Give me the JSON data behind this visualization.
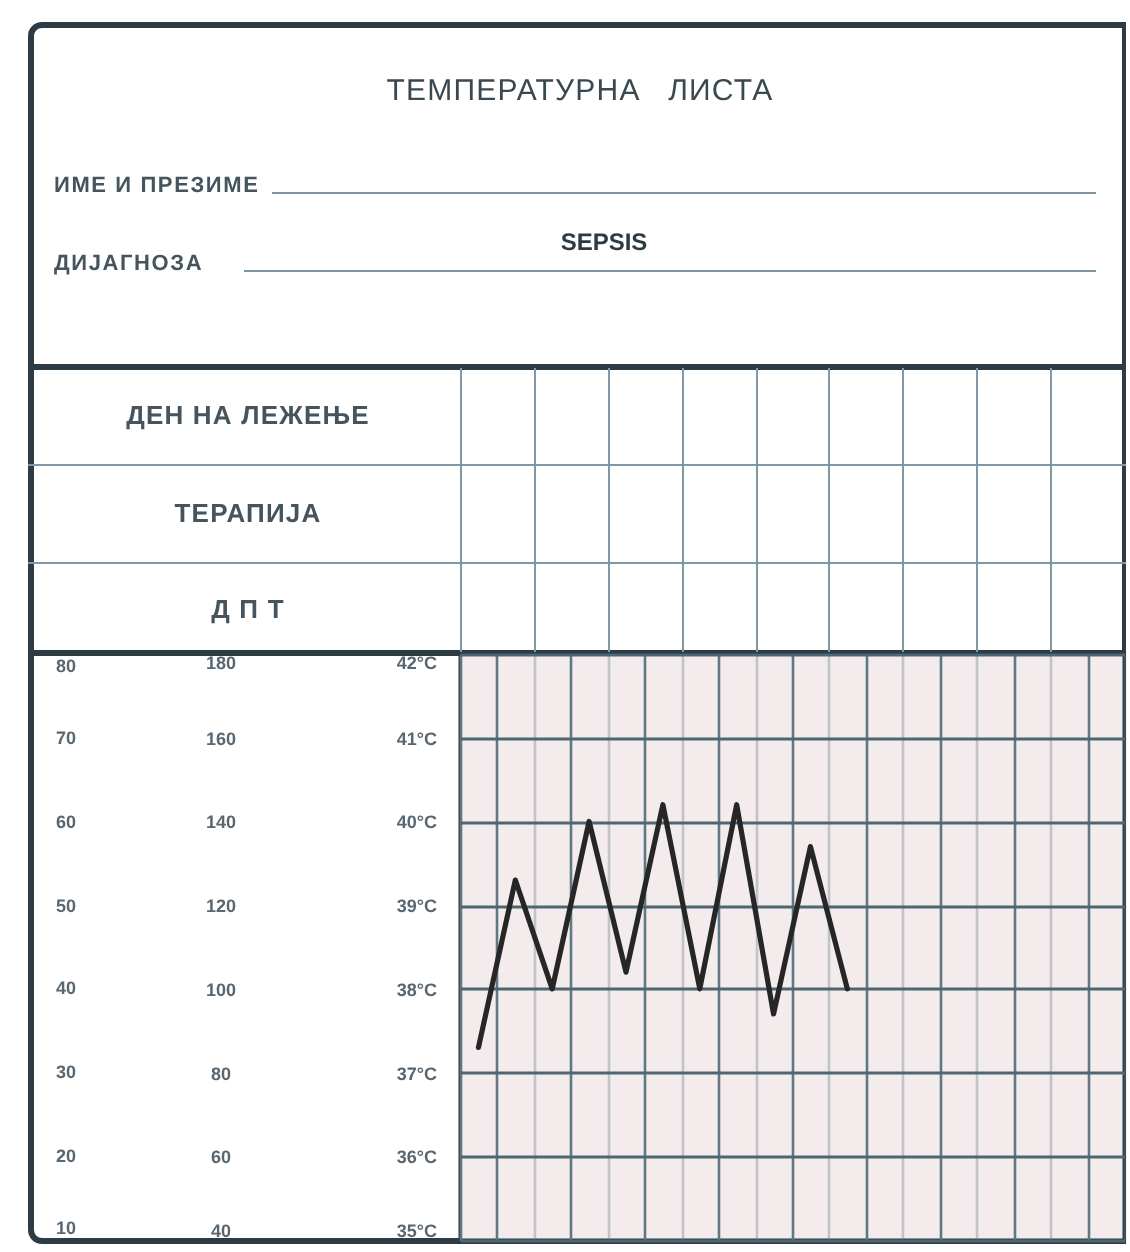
{
  "chart_data": {
    "type": "line",
    "title": "ТЕМПЕРАТУРНА ЛИСТА",
    "annotations": [
      "ИМЕ И ПРЕЗИМЕ",
      "ДИЈАГНОЗА",
      "SEPSIS",
      "ДЕН НА ЛЕЖЕЊЕ",
      "ТЕРАПИЈА",
      "Д П Т",
      "80",
      "70",
      "60",
      "50",
      "40",
      "30",
      "20",
      "10"
    ],
    "categories": [
      null,
      null,
      null,
      null,
      null,
      null,
      null,
      null,
      null,
      null,
      null,
      null,
      null,
      null,
      null,
      null,
      null,
      null
    ],
    "series": [
      {
        "color": "#262626",
        "values": [
          37.3,
          39.3,
          38.0,
          40.0,
          38.2,
          40.2,
          38.0,
          40.2,
          37.7,
          39.7,
          38.0,
          null,
          null,
          null,
          null,
          null,
          null,
          null
        ]
      }
    ],
    "ylim": [
      35,
      42
    ],
    "yticks": [
      {
        "value": 35,
        "label": "35°C"
      },
      {
        "value": 36,
        "label": "36°C"
      },
      {
        "value": 37,
        "label": "37°C"
      },
      {
        "value": 38,
        "label": "38°C"
      },
      {
        "value": 39,
        "label": "39°C"
      },
      {
        "value": 40,
        "label": "40°C"
      },
      {
        "value": 41,
        "label": "41°C"
      },
      {
        "value": 42,
        "label": "42°C"
      }
    ],
    "y2lim": [
      40,
      180
    ],
    "y2ticks": [
      40,
      60,
      80,
      100,
      120,
      140,
      160,
      180
    ],
    "grid": true,
    "tick_labels": "y"
  }
}
